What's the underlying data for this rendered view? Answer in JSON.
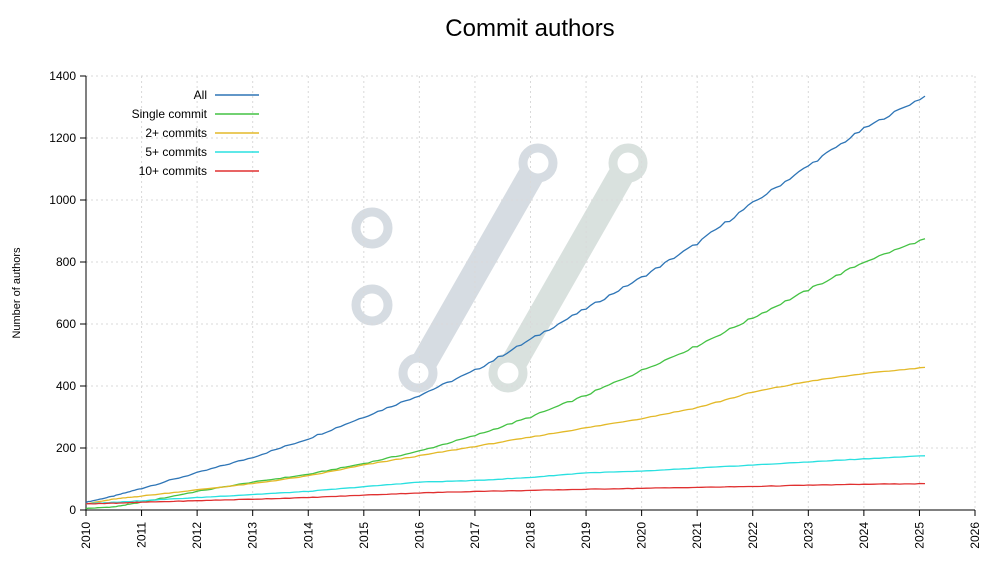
{
  "chart_data": {
    "type": "line",
    "title": "Commit authors",
    "xlabel": "",
    "ylabel": "Number of authors",
    "xlim": [
      2010,
      2026
    ],
    "ylim": [
      0,
      1400
    ],
    "x_ticks": [
      "2010",
      "2011",
      "2012",
      "2013",
      "2014",
      "2015",
      "2016",
      "2017",
      "2018",
      "2019",
      "2020",
      "2021",
      "2022",
      "2023",
      "2024",
      "2025",
      "2026"
    ],
    "y_ticks": [
      "0",
      "200",
      "400",
      "600",
      "800",
      "1000",
      "1200",
      "1400"
    ],
    "grid": true,
    "legend_position": "top-left",
    "series": [
      {
        "name": "All",
        "color": "#2e75b6",
        "x": [
          2010,
          2010.5,
          2011,
          2012,
          2013,
          2014,
          2015,
          2016,
          2017,
          2018,
          2019,
          2020,
          2021,
          2022,
          2023,
          2024,
          2025.1
        ],
        "y": [
          25,
          45,
          70,
          120,
          170,
          230,
          300,
          370,
          450,
          550,
          650,
          750,
          860,
          990,
          1110,
          1230,
          1335
        ]
      },
      {
        "name": "Single commit",
        "color": "#44c244",
        "x": [
          2010,
          2010.5,
          2011,
          2012,
          2013,
          2014,
          2015,
          2016,
          2017,
          2018,
          2019,
          2020,
          2021,
          2022,
          2023,
          2024,
          2025.1
        ],
        "y": [
          5,
          10,
          25,
          60,
          90,
          115,
          150,
          190,
          240,
          300,
          370,
          450,
          530,
          620,
          710,
          800,
          875
        ]
      },
      {
        "name": "2+ commits",
        "color": "#e3b928",
        "x": [
          2010,
          2010.5,
          2011,
          2012,
          2013,
          2014,
          2015,
          2016,
          2017,
          2018,
          2019,
          2020,
          2021,
          2022,
          2023,
          2024,
          2025.1
        ],
        "y": [
          20,
          35,
          45,
          65,
          85,
          110,
          145,
          175,
          205,
          235,
          265,
          295,
          330,
          380,
          415,
          440,
          460
        ]
      },
      {
        "name": "5+ commits",
        "color": "#2ae0e0",
        "x": [
          2010,
          2010.5,
          2011,
          2012,
          2013,
          2014,
          2015,
          2016,
          2017,
          2018,
          2019,
          2020,
          2021,
          2022,
          2023,
          2024,
          2025.1
        ],
        "y": [
          20,
          25,
          30,
          40,
          50,
          60,
          75,
          90,
          95,
          105,
          120,
          125,
          135,
          145,
          155,
          165,
          175
        ]
      },
      {
        "name": "10+ commits",
        "color": "#e03030",
        "x": [
          2010,
          2010.5,
          2011,
          2012,
          2013,
          2014,
          2015,
          2016,
          2017,
          2018,
          2019,
          2020,
          2021,
          2022,
          2023,
          2024,
          2025.1
        ],
        "y": [
          20,
          22,
          25,
          30,
          35,
          40,
          48,
          55,
          60,
          63,
          67,
          70,
          73,
          76,
          80,
          83,
          85
        ]
      }
    ]
  }
}
